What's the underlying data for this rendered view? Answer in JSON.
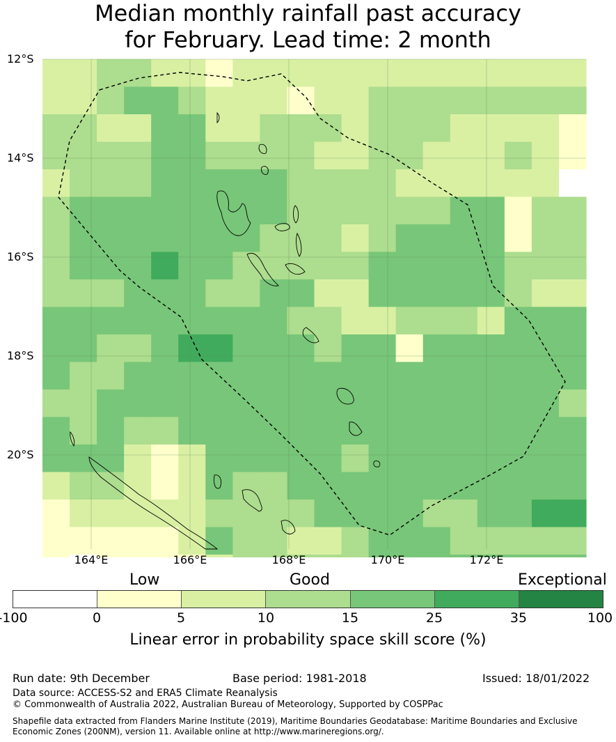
{
  "title": {
    "line1": "Median monthly rainfall past accuracy",
    "line2": "for February. Lead time: 2 month"
  },
  "map": {
    "lat_labels": [
      "12°S",
      "14°S",
      "16°S",
      "18°S",
      "20°S"
    ],
    "lon_labels": [
      "164°E",
      "166°E",
      "168°E",
      "170°E",
      "172°E"
    ],
    "grid_colors": [
      "#ffffff",
      "#ffffcc",
      "#d9f0a3",
      "#addd8e",
      "#78c679",
      "#41ab5d",
      "#238443"
    ],
    "grid": [
      [
        2,
        2,
        3,
        3,
        2,
        2,
        1,
        2,
        2,
        2,
        2,
        2,
        2,
        2,
        2,
        2,
        2,
        2,
        2,
        2
      ],
      [
        2,
        2,
        3,
        4,
        4,
        3,
        2,
        2,
        2,
        1,
        2,
        2,
        3,
        3,
        3,
        3,
        3,
        3,
        3,
        3
      ],
      [
        3,
        3,
        2,
        2,
        4,
        4,
        2,
        2,
        3,
        3,
        3,
        2,
        3,
        3,
        3,
        2,
        2,
        2,
        2,
        1
      ],
      [
        3,
        3,
        3,
        3,
        4,
        4,
        3,
        3,
        3,
        3,
        2,
        2,
        3,
        3,
        2,
        2,
        2,
        3,
        2,
        1
      ],
      [
        2,
        3,
        3,
        3,
        4,
        4,
        4,
        4,
        4,
        3,
        3,
        3,
        3,
        2,
        2,
        2,
        2,
        2,
        2,
        0
      ],
      [
        3,
        4,
        4,
        4,
        4,
        4,
        4,
        4,
        4,
        3,
        3,
        3,
        3,
        3,
        3,
        4,
        4,
        1,
        3,
        3
      ],
      [
        3,
        4,
        4,
        4,
        4,
        4,
        4,
        4,
        3,
        3,
        3,
        2,
        3,
        4,
        4,
        4,
        4,
        1,
        3,
        3
      ],
      [
        3,
        4,
        4,
        4,
        5,
        4,
        4,
        3,
        3,
        3,
        3,
        3,
        4,
        4,
        4,
        4,
        4,
        3,
        3,
        3
      ],
      [
        3,
        3,
        3,
        4,
        4,
        4,
        3,
        3,
        4,
        4,
        2,
        2,
        4,
        4,
        4,
        4,
        4,
        3,
        2,
        2
      ],
      [
        4,
        4,
        4,
        4,
        4,
        4,
        4,
        4,
        4,
        3,
        3,
        2,
        2,
        3,
        3,
        3,
        2,
        4,
        4,
        4
      ],
      [
        4,
        4,
        3,
        3,
        4,
        5,
        5,
        4,
        4,
        4,
        3,
        4,
        4,
        1,
        4,
        4,
        4,
        4,
        4,
        4
      ],
      [
        4,
        3,
        3,
        4,
        4,
        4,
        4,
        4,
        4,
        4,
        4,
        4,
        4,
        4,
        4,
        4,
        4,
        4,
        4,
        4
      ],
      [
        3,
        3,
        4,
        4,
        4,
        4,
        4,
        4,
        4,
        4,
        4,
        4,
        4,
        4,
        4,
        4,
        4,
        4,
        4,
        3
      ],
      [
        4,
        3,
        4,
        3,
        3,
        4,
        4,
        4,
        4,
        4,
        4,
        4,
        4,
        4,
        4,
        4,
        4,
        4,
        4,
        4
      ],
      [
        4,
        4,
        4,
        2,
        1,
        2,
        4,
        4,
        4,
        4,
        4,
        3,
        4,
        4,
        4,
        4,
        4,
        4,
        4,
        4
      ],
      [
        2,
        3,
        3,
        2,
        1,
        2,
        4,
        3,
        3,
        4,
        4,
        4,
        4,
        4,
        4,
        4,
        4,
        4,
        4,
        4
      ],
      [
        1,
        2,
        2,
        2,
        2,
        2,
        3,
        3,
        3,
        3,
        4,
        4,
        4,
        4,
        3,
        3,
        4,
        4,
        5,
        5
      ],
      [
        1,
        1,
        1,
        1,
        1,
        2,
        4,
        3,
        3,
        2,
        2,
        3,
        4,
        4,
        4,
        3,
        3,
        3,
        3,
        3
      ],
      [
        1,
        0,
        1,
        1,
        1,
        1,
        2,
        3,
        3,
        3,
        3,
        3,
        4,
        4,
        4,
        4,
        4,
        4,
        4,
        4
      ]
    ]
  },
  "colorbar": {
    "category_labels": [
      "Low",
      "Good",
      "Exceptional"
    ],
    "colors": [
      "#ffffff",
      "#ffffcc",
      "#d9f0a3",
      "#addd8e",
      "#78c679",
      "#41ab5d",
      "#238443"
    ],
    "ticks": [
      "-100",
      "0",
      "5",
      "10",
      "15",
      "25",
      "35",
      "100"
    ],
    "label": "Linear error in probability space skill score (%)"
  },
  "footer": {
    "run_date": "Run date: 9th December",
    "base_period": "Base period: 1981-2018",
    "issued": "Issued: 18/01/2022",
    "data_source": "Data source: ACCESS-S2 and ERA5 Climate Reanalysis",
    "copyright": "© Commonwealth of Australia 2022, Australian Bureau of Meteorology, Supported by COSPPac",
    "shapefile_line1": "Shapefile data extracted from Flanders Marine Institute (2019), Maritime Boundaries Geodatabase: Maritime Boundaries and Exclusive",
    "shapefile_line2": "Economic Zones (200NM), version 11. Available online at http://www.marineregions.org/."
  }
}
